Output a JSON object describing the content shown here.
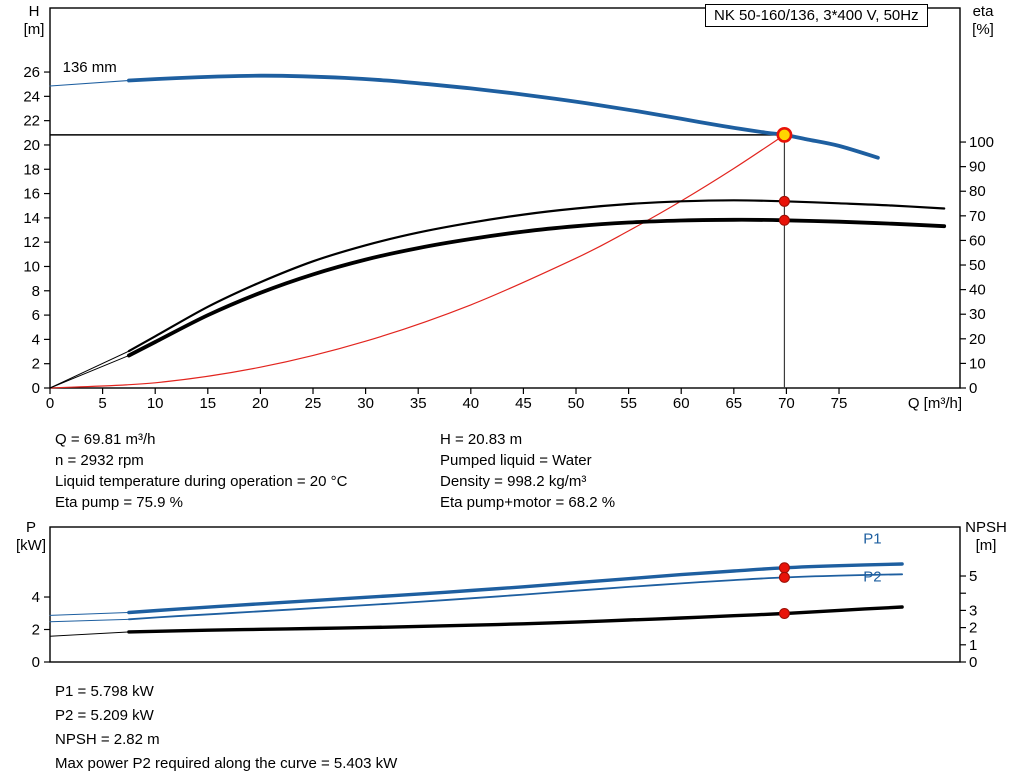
{
  "title_box": "NK 50-160/136, 3*400 V, 50Hz",
  "axis_titles": {
    "qh_left": [
      "H",
      "[m]"
    ],
    "qh_right": [
      "eta",
      "[%]"
    ],
    "pw_left": [
      "P",
      "[kW]"
    ],
    "pw_right": [
      "NPSH",
      "[m]"
    ]
  },
  "info_top": {
    "left": [
      "Q = 69.81 m³/h",
      "n = 2932 rpm",
      "Liquid temperature during operation = 20 °C",
      "Eta pump = 75.9 %"
    ],
    "right": [
      "H = 20.83 m",
      "Pumped liquid = Water",
      "Density = 998.2 kg/m³",
      "Eta pump+motor = 68.2 %"
    ]
  },
  "info_bottom": [
    "P1 = 5.798 kW",
    "P2 = 5.209 kW",
    "NPSH = 2.82 m",
    "Max power P2 required along the curve = 5.403 kW"
  ],
  "colors": {
    "curve_blue": "#1e5fa0",
    "curve_black": "#000000",
    "system_red": "#e2251f",
    "marker_red": "#e81309",
    "duty_yellow": "#ffd400",
    "frame": "#000000"
  },
  "chart_data": [
    {
      "id": "qh-eta",
      "type": "line",
      "title": "NK 50-160/136, 3*400 V, 50Hz",
      "xlabel": "Q [m³/h]",
      "ylabel_left": "H [m]",
      "ylabel_right": "eta [%]",
      "xlim": [
        0,
        86.5
      ],
      "ylim_left": [
        0,
        31.27
      ],
      "ylim_right": [
        0,
        154.5
      ],
      "x_ticks": [
        0,
        5,
        10,
        15,
        20,
        25,
        30,
        35,
        40,
        45,
        50,
        55,
        60,
        65,
        70,
        75
      ],
      "y_ticks_left": [
        0,
        2,
        4,
        6,
        8,
        10,
        12,
        14,
        16,
        18,
        20,
        22,
        24,
        26
      ],
      "y_ticks_right": [
        0,
        10,
        20,
        30,
        40,
        50,
        60,
        70,
        80,
        90,
        100
      ],
      "duty_lines": {
        "h_value": 20.83,
        "v_q": 69.81
      },
      "series": [
        {
          "name": "system-curve",
          "axis": "left",
          "color_key": "system_red",
          "width": 1.2,
          "points": [
            [
              0,
              0
            ],
            [
              10,
              0.43
            ],
            [
              20,
              1.71
            ],
            [
              30,
              3.85
            ],
            [
              40,
              6.84
            ],
            [
              50,
              10.68
            ],
            [
              55,
              12.93
            ],
            [
              60,
              15.39
            ],
            [
              65,
              18.06
            ],
            [
              69.81,
              20.83
            ]
          ]
        },
        {
          "name": "eta-pump-leadin",
          "axis": "right",
          "color_key": "curve_black",
          "width": 1,
          "points": [
            [
              0,
              0
            ],
            [
              7.5,
              15
            ]
          ]
        },
        {
          "name": "eta-pump-motor-leadin",
          "axis": "right",
          "color_key": "curve_black",
          "width": 1,
          "points": [
            [
              0,
              0
            ],
            [
              7.5,
              13.2
            ]
          ]
        },
        {
          "name": "eta-pump-curve",
          "axis": "right",
          "color_key": "curve_black",
          "width": 2.2,
          "points": [
            [
              7.5,
              15
            ],
            [
              10,
              21
            ],
            [
              15,
              33
            ],
            [
              20,
              43
            ],
            [
              25,
              51.5
            ],
            [
              30,
              58
            ],
            [
              35,
              63.2
            ],
            [
              40,
              67.2
            ],
            [
              45,
              70.5
            ],
            [
              50,
              73
            ],
            [
              55,
              74.8
            ],
            [
              60,
              75.9
            ],
            [
              65,
              76.3
            ],
            [
              69.81,
              75.9
            ],
            [
              75,
              75.1
            ],
            [
              80,
              74.2
            ],
            [
              85,
              73
            ]
          ]
        },
        {
          "name": "eta-pump-motor-curve",
          "axis": "right",
          "color_key": "curve_black",
          "width": 3.8,
          "points": [
            [
              7.5,
              13.2
            ],
            [
              10,
              18.7
            ],
            [
              15,
              29.6
            ],
            [
              20,
              38.7
            ],
            [
              25,
              46.2
            ],
            [
              30,
              52.2
            ],
            [
              35,
              56.9
            ],
            [
              40,
              60.6
            ],
            [
              45,
              63.6
            ],
            [
              50,
              65.8
            ],
            [
              55,
              67.3
            ],
            [
              60,
              68.1
            ],
            [
              65,
              68.4
            ],
            [
              69.81,
              68.2
            ],
            [
              75,
              67.6
            ],
            [
              80,
              66.8
            ],
            [
              85,
              65.8
            ]
          ]
        },
        {
          "name": "impeller-curve-leadin",
          "axis": "left",
          "color_key": "curve_blue",
          "width": 1,
          "points": [
            [
              0,
              24.85
            ],
            [
              7.5,
              25.3
            ]
          ]
        },
        {
          "name": "impeller-curve-136mm",
          "label": "136 mm",
          "label_at": [
            1.2,
            26.0
          ],
          "label_color": "#000000",
          "axis": "left",
          "color_key": "curve_blue",
          "width": 3.8,
          "points": [
            [
              7.5,
              25.3
            ],
            [
              12,
              25.5
            ],
            [
              16,
              25.63
            ],
            [
              20,
              25.7
            ],
            [
              24,
              25.65
            ],
            [
              28,
              25.52
            ],
            [
              32,
              25.3
            ],
            [
              36,
              25.0
            ],
            [
              40,
              24.65
            ],
            [
              44,
              24.25
            ],
            [
              48,
              23.8
            ],
            [
              52,
              23.3
            ],
            [
              56,
              22.75
            ],
            [
              60,
              22.15
            ],
            [
              64,
              21.55
            ],
            [
              68,
              21.02
            ],
            [
              69.81,
              20.83
            ],
            [
              72,
              20.45
            ],
            [
              75,
              19.92
            ],
            [
              78.7,
              18.95
            ]
          ]
        }
      ],
      "markers": [
        {
          "name": "duty-point-marker",
          "style": "duty",
          "axis": "left",
          "Q": 69.81,
          "value": 20.83
        },
        {
          "name": "eta-pump-duty-dot",
          "style": "dot",
          "axis": "right",
          "Q": 69.81,
          "value": 75.9
        },
        {
          "name": "eta-pump-motor-duty-dot",
          "style": "dot",
          "axis": "right",
          "Q": 69.81,
          "value": 68.2
        }
      ]
    },
    {
      "id": "power-npsh",
      "type": "line",
      "title": "",
      "xlabel": "",
      "ylabel_left": "P [kW]",
      "ylabel_right": "NPSH [m]",
      "xlim": [
        0,
        86.5
      ],
      "ylim_left": [
        0,
        8.31
      ],
      "ylim_right": [
        0,
        7.85
      ],
      "x_ticks": [],
      "y_ticks_left": [
        0,
        2,
        4
      ],
      "y_ticks_right": [
        0,
        1,
        2,
        3,
        4,
        5
      ],
      "y_ticks_right_labeled": [
        0,
        1,
        2,
        3,
        5
      ],
      "series": [
        {
          "name": "p1-leadin",
          "axis": "left",
          "color_key": "curve_blue",
          "width": 1,
          "points": [
            [
              0,
              2.87
            ],
            [
              7.5,
              3.05
            ]
          ]
        },
        {
          "name": "p2-leadin",
          "axis": "left",
          "color_key": "curve_blue",
          "width": 1,
          "points": [
            [
              0,
              2.48
            ],
            [
              7.5,
              2.63
            ]
          ]
        },
        {
          "name": "npsh-leadin",
          "axis": "right",
          "color_key": "curve_black",
          "width": 1,
          "points": [
            [
              0,
              1.5
            ],
            [
              7.5,
              1.75
            ]
          ]
        },
        {
          "name": "p1-curve",
          "label": "P1",
          "label_at": [
            77.3,
            7.3
          ],
          "axis": "left",
          "color_key": "curve_blue",
          "width": 3.4,
          "points": [
            [
              7.5,
              3.05
            ],
            [
              12,
              3.25
            ],
            [
              16,
              3.42
            ],
            [
              20,
              3.58
            ],
            [
              25,
              3.78
            ],
            [
              30,
              3.98
            ],
            [
              35,
              4.18
            ],
            [
              40,
              4.4
            ],
            [
              45,
              4.63
            ],
            [
              50,
              4.88
            ],
            [
              55,
              5.13
            ],
            [
              60,
              5.38
            ],
            [
              65,
              5.6
            ],
            [
              69.81,
              5.798
            ],
            [
              75,
              5.93
            ],
            [
              81,
              6.03
            ]
          ]
        },
        {
          "name": "p2-curve",
          "label": "P2",
          "label_at": [
            77.3,
            4.95
          ],
          "axis": "left",
          "color_key": "curve_blue",
          "width": 1.8,
          "points": [
            [
              7.5,
              2.63
            ],
            [
              12,
              2.82
            ],
            [
              16,
              2.97
            ],
            [
              20,
              3.12
            ],
            [
              25,
              3.31
            ],
            [
              30,
              3.5
            ],
            [
              35,
              3.7
            ],
            [
              40,
              3.92
            ],
            [
              45,
              4.15
            ],
            [
              50,
              4.39
            ],
            [
              55,
              4.62
            ],
            [
              60,
              4.84
            ],
            [
              65,
              5.04
            ],
            [
              69.81,
              5.209
            ],
            [
              75,
              5.32
            ],
            [
              81,
              5.4
            ]
          ]
        },
        {
          "name": "npsh-curve",
          "axis": "right",
          "color_key": "curve_black",
          "width": 3.4,
          "points": [
            [
              7.5,
              1.75
            ],
            [
              15,
              1.85
            ],
            [
              20,
              1.9
            ],
            [
              25,
              1.95
            ],
            [
              30,
              2.0
            ],
            [
              35,
              2.07
            ],
            [
              40,
              2.14
            ],
            [
              45,
              2.22
            ],
            [
              50,
              2.32
            ],
            [
              55,
              2.44
            ],
            [
              60,
              2.56
            ],
            [
              65,
              2.69
            ],
            [
              69.81,
              2.82
            ],
            [
              75,
              3.0
            ],
            [
              81,
              3.2
            ]
          ]
        }
      ],
      "markers": [
        {
          "name": "p1-duty-dot",
          "style": "dot",
          "axis": "left",
          "Q": 69.81,
          "value": 5.798
        },
        {
          "name": "p2-duty-dot",
          "style": "dot",
          "axis": "left",
          "Q": 69.81,
          "value": 5.209
        },
        {
          "name": "npsh-duty-dot",
          "style": "dot",
          "axis": "right",
          "Q": 69.81,
          "value": 2.82
        }
      ]
    }
  ]
}
